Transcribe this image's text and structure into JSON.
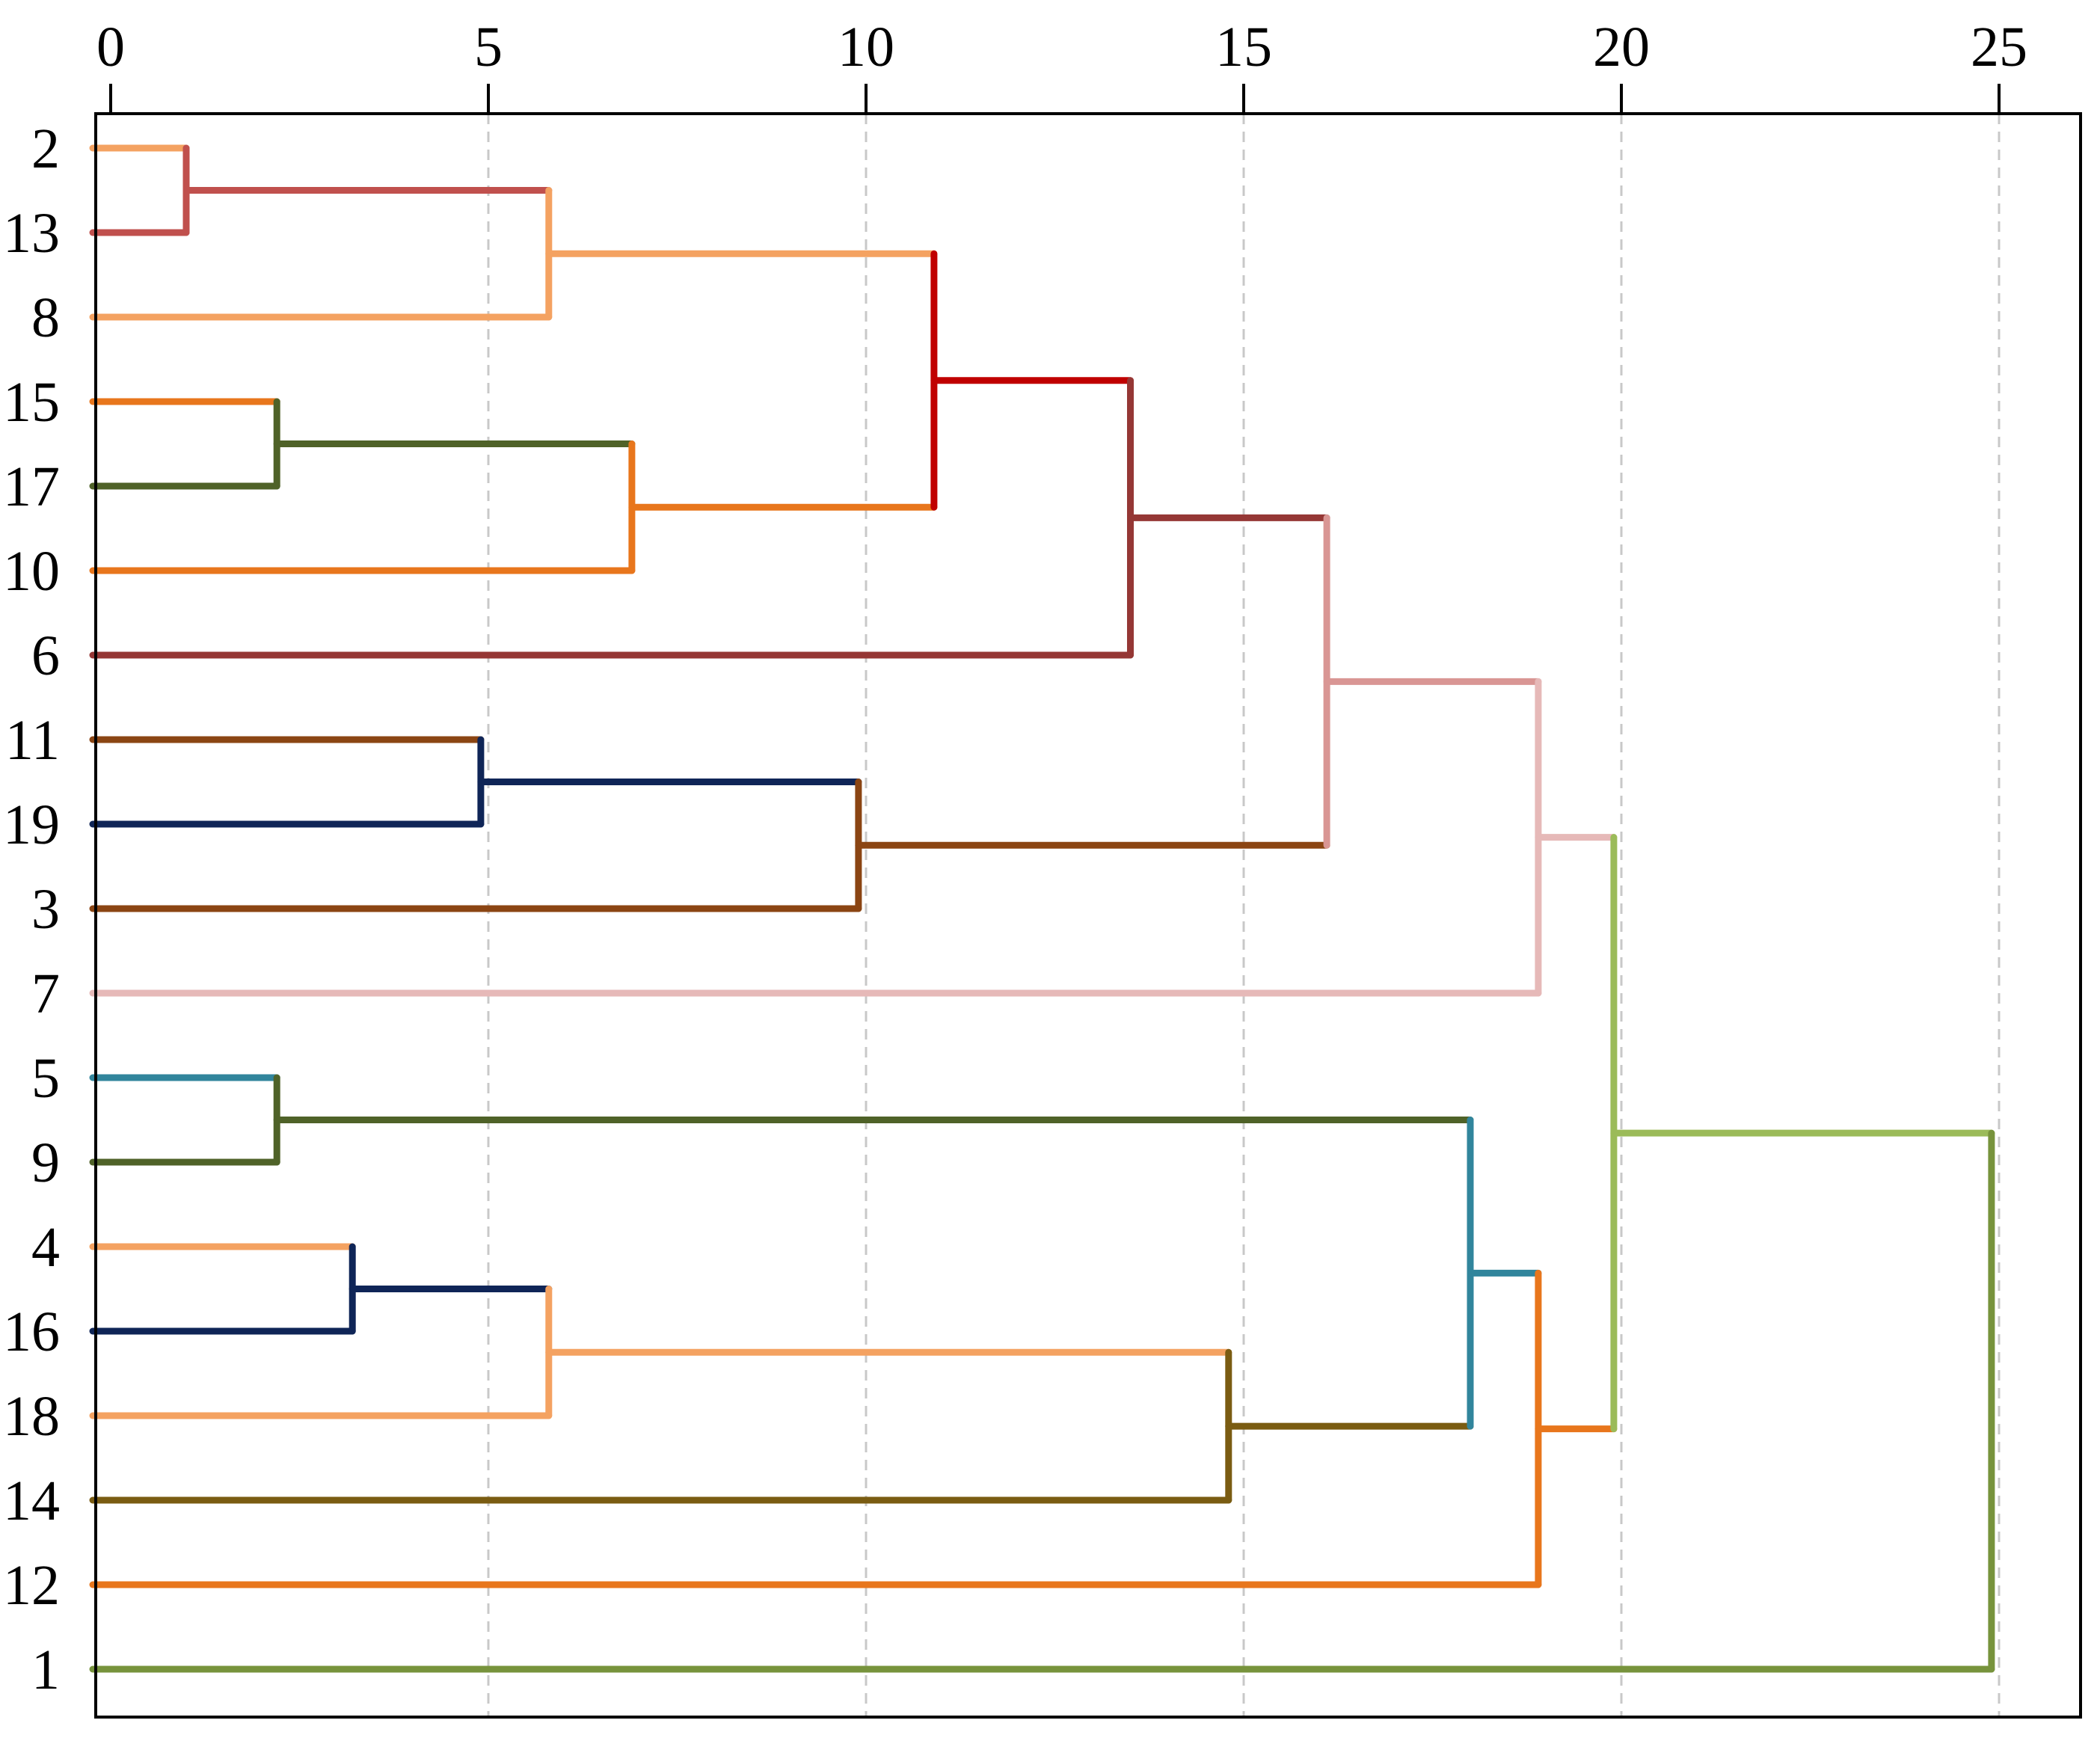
{
  "chart_data": {
    "type": "dendrogram",
    "orientation": "horizontal",
    "title": "",
    "xlabel": "",
    "ylabel": "",
    "xlim": [
      0,
      26.2
    ],
    "x_ticks": [
      0,
      5,
      10,
      15,
      20,
      25
    ],
    "x_tick_labels": [
      "0",
      "5",
      "10",
      "15",
      "20",
      "25"
    ],
    "grid": "vertical dashed at x ticks",
    "leaves": [
      {
        "label": "2",
        "color": "#f4a261"
      },
      {
        "label": "13",
        "color": "#c0504d"
      },
      {
        "label": "8",
        "color": "#f4a261"
      },
      {
        "label": "15",
        "color": "#e8761c"
      },
      {
        "label": "17",
        "color": "#4f6228"
      },
      {
        "label": "10",
        "color": "#e8761c"
      },
      {
        "label": "6",
        "color": "#953735"
      },
      {
        "label": "11",
        "color": "#8b4513"
      },
      {
        "label": "19",
        "color": "#0f2557"
      },
      {
        "label": "3",
        "color": "#8b4513"
      },
      {
        "label": "7",
        "color": "#e6b9b8"
      },
      {
        "label": "5",
        "color": "#31859c"
      },
      {
        "label": "9",
        "color": "#4f6228"
      },
      {
        "label": "4",
        "color": "#f4a261"
      },
      {
        "label": "16",
        "color": "#0f2557"
      },
      {
        "label": "18",
        "color": "#f4a261"
      },
      {
        "label": "14",
        "color": "#7a5c12"
      },
      {
        "label": "12",
        "color": "#e8761c"
      },
      {
        "label": "1",
        "color": "#77933c"
      }
    ],
    "merges": [
      {
        "id": "m1",
        "height": 1.0,
        "upper": "2",
        "lower": "13",
        "color": "#c0504d"
      },
      {
        "id": "m2",
        "height": 5.8,
        "upper": "m1",
        "lower": "8",
        "color": "#f4a261"
      },
      {
        "id": "m3",
        "height": 2.2,
        "upper": "15",
        "lower": "17",
        "color": "#4f6228"
      },
      {
        "id": "m4",
        "height": 6.9,
        "upper": "m3",
        "lower": "10",
        "color": "#e8761c"
      },
      {
        "id": "m5",
        "height": 10.9,
        "upper": "m2",
        "lower": "m4",
        "color": "#c00000"
      },
      {
        "id": "m6",
        "height": 13.5,
        "upper": "m5",
        "lower": "6",
        "color": "#953735"
      },
      {
        "id": "m7",
        "height": 4.9,
        "upper": "11",
        "lower": "19",
        "color": "#0f2557"
      },
      {
        "id": "m8",
        "height": 9.9,
        "upper": "m7",
        "lower": "3",
        "color": "#8b4513"
      },
      {
        "id": "m9",
        "height": 16.1,
        "upper": "m6",
        "lower": "m8",
        "color": "#d99694"
      },
      {
        "id": "m10",
        "height": 18.9,
        "upper": "m9",
        "lower": "7",
        "color": "#e6b9b8"
      },
      {
        "id": "m11",
        "height": 2.2,
        "upper": "5",
        "lower": "9",
        "color": "#4f6228"
      },
      {
        "id": "m12",
        "height": 3.2,
        "upper": "4",
        "lower": "16",
        "color": "#0f2557"
      },
      {
        "id": "m13",
        "height": 5.8,
        "upper": "m12",
        "lower": "18",
        "color": "#f4a261"
      },
      {
        "id": "m14",
        "height": 14.8,
        "upper": "m13",
        "lower": "14",
        "color": "#7a5c12"
      },
      {
        "id": "m15",
        "height": 18.0,
        "upper": "m11",
        "lower": "m14",
        "color": "#31859c"
      },
      {
        "id": "m16",
        "height": 18.9,
        "upper": "m15",
        "lower": "12",
        "color": "#e8761c"
      },
      {
        "id": "m17",
        "height": 19.9,
        "upper": "m10",
        "lower": "m16",
        "color": "#9bbb59"
      },
      {
        "id": "m18",
        "height": 24.9,
        "upper": "m17",
        "lower": "1",
        "color": "#77933c"
      }
    ]
  }
}
